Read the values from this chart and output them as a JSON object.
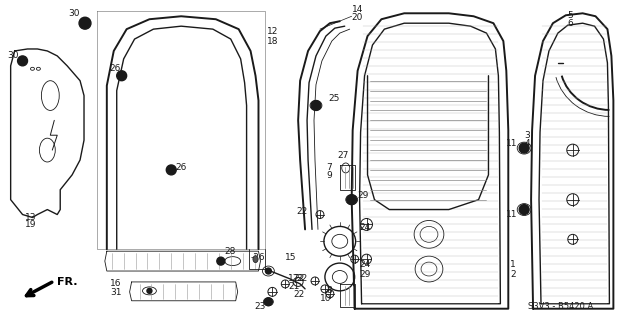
{
  "bg_color": "#ffffff",
  "diagram_code": "S3V3 - B5420 A",
  "line_color": "#1a1a1a",
  "label_fontsize": 6.5,
  "dark_color": "#111111"
}
